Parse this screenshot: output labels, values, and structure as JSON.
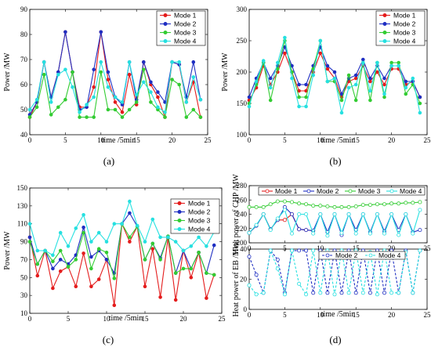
{
  "figure": {
    "captions": [
      "(a)",
      "(b)",
      "(c)",
      "(d)"
    ]
  },
  "chart_data": [
    {
      "type": "line",
      "xlabel": "time /5min",
      "ylabel": "Power /MW",
      "xlim": [
        0,
        25
      ],
      "ylim": [
        40,
        90
      ],
      "xticks": [
        0,
        5,
        10,
        15,
        20,
        25
      ],
      "yticks": [
        40,
        50,
        60,
        70,
        80,
        90
      ],
      "legend": "top-right",
      "x": [
        0,
        1,
        2,
        3,
        4,
        5,
        6,
        7,
        8,
        9,
        10,
        11,
        12,
        13,
        14,
        15,
        16,
        17,
        18,
        19,
        20,
        21,
        22,
        23,
        24
      ],
      "series": [
        {
          "name": "Mode 1",
          "color": "#e41c1c",
          "marker": "filled-circle",
          "values": [
            47,
            53,
            69,
            55,
            65,
            81,
            65,
            51,
            51,
            59,
            81,
            62,
            53,
            49,
            64,
            52,
            69,
            60,
            55,
            47,
            69,
            68,
            53,
            61,
            47
          ]
        },
        {
          "name": "Mode 2",
          "color": "#1f2fc2",
          "marker": "filled-circle",
          "values": [
            48,
            53,
            69,
            55,
            65,
            81,
            65,
            50,
            51,
            66,
            81,
            65,
            55,
            52,
            69,
            54,
            69,
            61,
            57,
            53,
            69,
            68,
            55,
            69,
            54
          ]
        },
        {
          "name": "Mode 3",
          "color": "#33cc33",
          "marker": "filled-circle",
          "values": [
            47,
            51,
            64,
            48,
            51,
            54,
            65,
            47,
            47,
            47,
            65,
            50,
            50,
            47,
            50,
            53,
            66,
            53,
            50,
            47,
            62,
            60,
            47,
            50,
            47
          ]
        },
        {
          "name": "Mode 4",
          "color": "#26e0e0",
          "marker": "filled-circle",
          "values": [
            50,
            54,
            69,
            53,
            64,
            66,
            59,
            49,
            52,
            55,
            69,
            59,
            55,
            53,
            69,
            56,
            61,
            57,
            51,
            49,
            69,
            69,
            53,
            63,
            54
          ]
        }
      ]
    },
    {
      "type": "line",
      "xlabel": "time /5min",
      "ylabel": "Power /MW",
      "xlim": [
        0,
        25
      ],
      "ylim": [
        100,
        300
      ],
      "xticks": [
        0,
        5,
        10,
        15,
        20,
        25
      ],
      "yticks": [
        100,
        150,
        200,
        250,
        300
      ],
      "legend": "top-right",
      "x": [
        0,
        1,
        2,
        3,
        4,
        5,
        6,
        7,
        8,
        9,
        10,
        11,
        12,
        13,
        14,
        15,
        16,
        17,
        18,
        19,
        20,
        21,
        22,
        23,
        24
      ],
      "series": [
        {
          "name": "Mode 1",
          "color": "#e41c1c",
          "marker": "filled-circle",
          "values": [
            155,
            175,
            210,
            180,
            200,
            230,
            200,
            170,
            170,
            200,
            230,
            205,
            190,
            160,
            185,
            190,
            210,
            185,
            200,
            180,
            205,
            205,
            180,
            185,
            160
          ]
        },
        {
          "name": "Mode 2",
          "color": "#1f2fc2",
          "marker": "filled-circle",
          "values": [
            160,
            190,
            215,
            190,
            210,
            240,
            210,
            180,
            180,
            210,
            240,
            210,
            200,
            165,
            190,
            195,
            220,
            190,
            210,
            190,
            210,
            210,
            185,
            185,
            160
          ]
        },
        {
          "name": "Mode 3",
          "color": "#33cc33",
          "marker": "filled-circle",
          "values": [
            150,
            180,
            215,
            155,
            205,
            250,
            200,
            160,
            160,
            205,
            250,
            185,
            185,
            155,
            195,
            155,
            215,
            155,
            215,
            160,
            215,
            215,
            165,
            180,
            150
          ]
        },
        {
          "name": "Mode 4",
          "color": "#26e0e0",
          "marker": "filled-circle",
          "values": [
            145,
            185,
            218,
            175,
            215,
            255,
            190,
            145,
            145,
            195,
            250,
            185,
            190,
            135,
            175,
            180,
            215,
            170,
            215,
            165,
            210,
            210,
            175,
            190,
            135
          ]
        }
      ]
    },
    {
      "type": "line",
      "xlabel": "time /5min",
      "ylabel": "Power /MW",
      "xlim": [
        0,
        25
      ],
      "ylim": [
        10,
        150
      ],
      "xticks": [
        0,
        5,
        10,
        15,
        20,
        25
      ],
      "yticks": [
        10,
        30,
        50,
        70,
        90,
        110,
        130,
        150
      ],
      "legend": "top-right",
      "x": [
        0,
        1,
        2,
        3,
        4,
        5,
        6,
        7,
        8,
        9,
        10,
        11,
        12,
        13,
        14,
        15,
        16,
        17,
        18,
        19,
        20,
        21,
        22,
        23,
        24
      ],
      "series": [
        {
          "name": "Mode 1",
          "color": "#e41c1c",
          "marker": "filled-circle",
          "values": [
            95,
            52,
            80,
            38,
            57,
            62,
            40,
            77,
            40,
            48,
            70,
            19,
            110,
            90,
            107,
            40,
            82,
            28,
            94,
            25,
            80,
            50,
            78,
            27,
            53
          ]
        },
        {
          "name": "Mode 2",
          "color": "#1f2fc2",
          "marker": "filled-circle",
          "values": [
            95,
            65,
            80,
            60,
            70,
            65,
            75,
            106,
            73,
            80,
            70,
            55,
            110,
            122,
            107,
            70,
            88,
            72,
            96,
            55,
            80,
            60,
            78,
            55,
            86
          ]
        },
        {
          "name": "Mode 3",
          "color": "#33cc33",
          "marker": "filled-circle",
          "values": [
            90,
            65,
            80,
            68,
            80,
            62,
            70,
            100,
            60,
            82,
            78,
            49,
            110,
            95,
            107,
            70,
            88,
            70,
            96,
            55,
            60,
            60,
            78,
            55,
            53
          ]
        },
        {
          "name": "Mode 4",
          "color": "#26e0e0",
          "marker": "filled-circle",
          "values": [
            110,
            80,
            80,
            75,
            100,
            85,
            105,
            120,
            90,
            100,
            90,
            110,
            110,
            135,
            108,
            90,
            115,
            95,
            95,
            90,
            80,
            85,
            95,
            85,
            101
          ]
        }
      ]
    },
    {
      "type": "line",
      "xlabel": "",
      "ylabel": "Heat power of CHP /MW",
      "xlim": [
        0,
        25
      ],
      "ylim": [
        200,
        280
      ],
      "xticks": [
        0,
        5,
        10,
        15,
        20,
        25
      ],
      "yticks": [
        200,
        220,
        240,
        260,
        280
      ],
      "legend": "top",
      "x": [
        0,
        1,
        2,
        3,
        4,
        5,
        6,
        7,
        8,
        9,
        10,
        11,
        12,
        13,
        14,
        15,
        16,
        17,
        18,
        19,
        20,
        21,
        22,
        23,
        24
      ],
      "series": [
        {
          "name": "Mode 1",
          "color": "#e41c1c",
          "marker": "open-circle",
          "values": [
            214,
            224,
            240,
            219,
            232,
            232,
            240,
            219,
            218,
            217,
            null,
            null,
            null,
            null,
            null,
            null,
            null,
            null,
            null,
            null,
            null,
            null,
            null,
            null,
            null
          ]
        },
        {
          "name": "Mode 2",
          "color": "#1f2fc2",
          "marker": "open-circle",
          "values": [
            214,
            224,
            240,
            219,
            232,
            250,
            240,
            219,
            218,
            217,
            240,
            215,
            240,
            211,
            240,
            218,
            240,
            215,
            240,
            216,
            240,
            218,
            240,
            215,
            218
          ]
        },
        {
          "name": "Mode 3",
          "color": "#33cc33",
          "marker": "open-circle",
          "values": [
            250,
            250,
            250,
            254,
            258,
            258,
            257,
            255,
            254,
            252,
            252,
            251,
            250,
            250,
            250,
            251,
            253,
            253,
            254,
            254,
            255,
            255,
            256,
            256,
            257
          ]
        },
        {
          "name": "Mode 4",
          "color": "#26e0e0",
          "marker": "open-circle",
          "values": [
            214,
            225,
            240,
            218,
            234,
            246,
            213,
            240,
            240,
            213,
            240,
            210,
            240,
            214,
            240,
            213,
            240,
            213,
            240,
            213,
            240,
            211,
            240,
            213,
            246
          ]
        }
      ]
    },
    {
      "type": "line",
      "xlabel": "time /5min",
      "ylabel": "Heat power of EB /MW",
      "xlim": [
        0,
        25
      ],
      "ylim": [
        0,
        40
      ],
      "xticks": [
        0,
        5,
        10,
        15,
        20,
        25
      ],
      "yticks": [
        0,
        20,
        40
      ],
      "legend": "top-right",
      "x": [
        0,
        1,
        2,
        3,
        4,
        5,
        6,
        7,
        8,
        9,
        10,
        11,
        12,
        13,
        14,
        15,
        16,
        17,
        18,
        19,
        20,
        21,
        22,
        23,
        24
      ],
      "series": [
        {
          "name": "Mode 2",
          "color": "#1f2fc2",
          "marker": "open-circle",
          "dash": true,
          "values": [
            35,
            23,
            11,
            39,
            33,
            11,
            39,
            39,
            39,
            11,
            39,
            11,
            39,
            11,
            39,
            11,
            39,
            11,
            39,
            11,
            39,
            11,
            39,
            11,
            39
          ]
        },
        {
          "name": "Mode 4",
          "color": "#26e0e0",
          "marker": "open-circle",
          "dash": true,
          "values": [
            16,
            10,
            11,
            39,
            27,
            10,
            39,
            17,
            10,
            39,
            11,
            39,
            10,
            39,
            11,
            39,
            11,
            38,
            10,
            39,
            11,
            11,
            38,
            11,
            39
          ]
        }
      ]
    }
  ]
}
